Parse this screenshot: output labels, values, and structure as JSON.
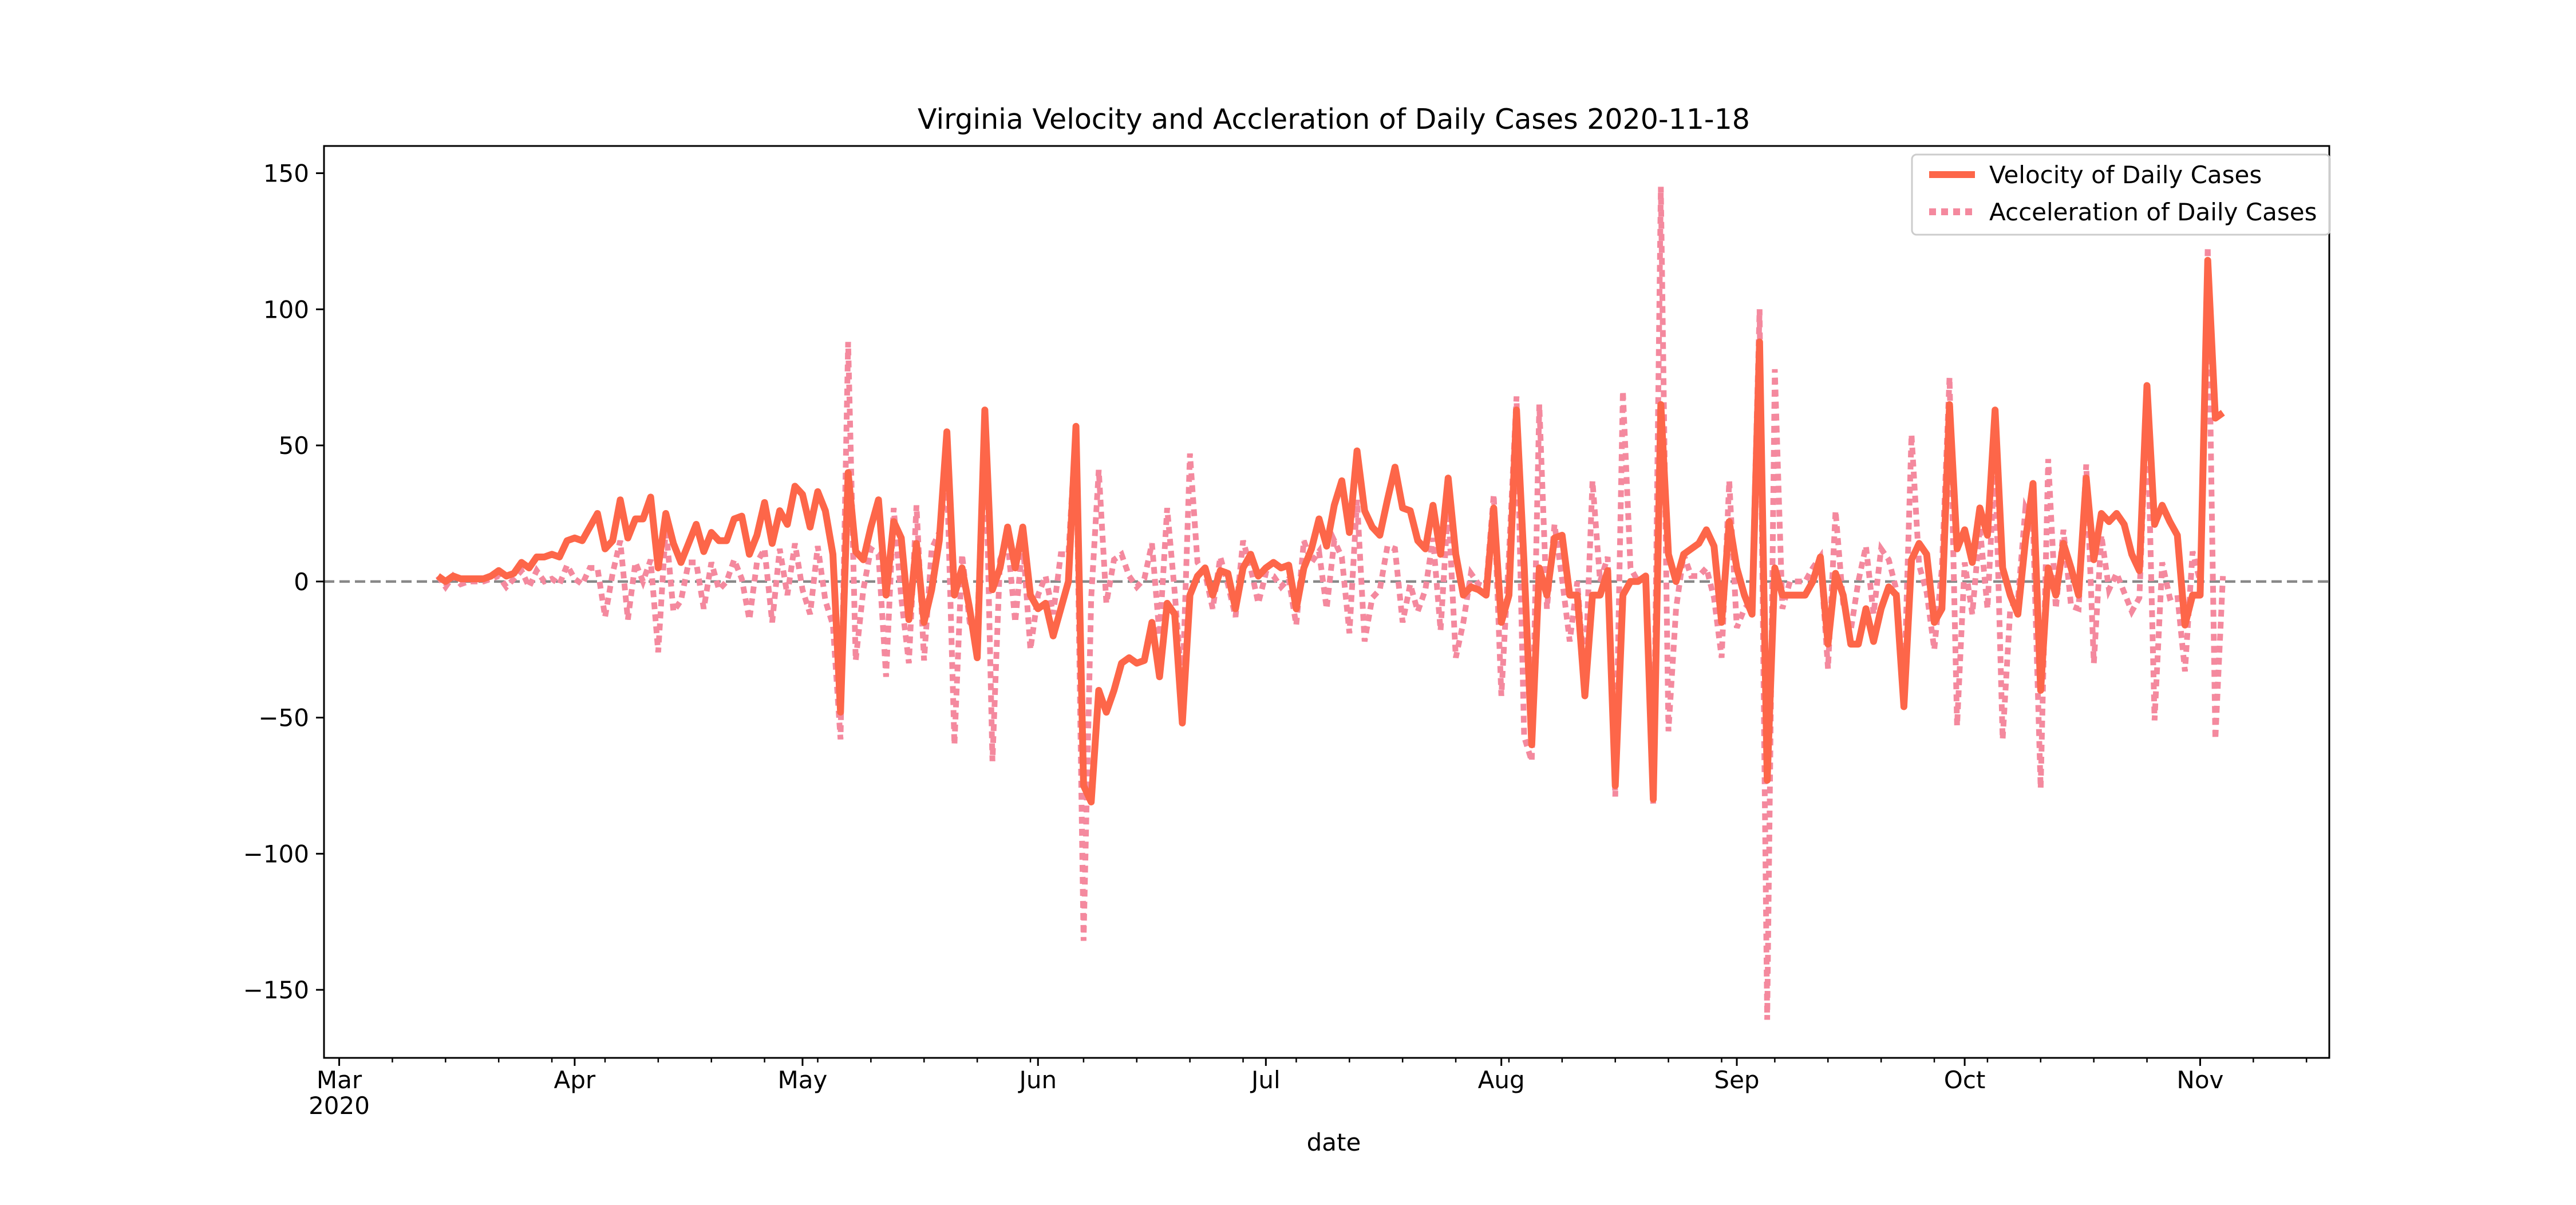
{
  "chart_data": {
    "type": "line",
    "title": "Virginia Velocity and Accleration of Daily Cases 2020-11-18",
    "xlabel": "date",
    "ylabel": "",
    "x_start": "2020-03-14",
    "x_end": "2020-11-18",
    "xlim": [
      "2020-02-28",
      "2020-11-18"
    ],
    "ylim": [
      -175,
      160
    ],
    "y_ticks": [
      -150,
      -100,
      -50,
      0,
      50,
      100,
      150
    ],
    "y_tick_labels": [
      "−150",
      "−100",
      "−50",
      "0",
      "50",
      "100",
      "150"
    ],
    "x_ticks": [
      {
        "date": "2020-03-01",
        "label": "Mar",
        "sublabel": "2020"
      },
      {
        "date": "2020-04-01",
        "label": "Apr"
      },
      {
        "date": "2020-05-01",
        "label": "May"
      },
      {
        "date": "2020-06-01",
        "label": "Jun"
      },
      {
        "date": "2020-07-01",
        "label": "Jul"
      },
      {
        "date": "2020-08-01",
        "label": "Aug"
      },
      {
        "date": "2020-09-01",
        "label": "Sep"
      },
      {
        "date": "2020-10-01",
        "label": "Oct"
      },
      {
        "date": "2020-11-01",
        "label": "Nov"
      }
    ],
    "legend_position": "top-right",
    "grid": false,
    "zero_line": {
      "y": 0,
      "style": "dashed",
      "color": "#888888"
    },
    "series": [
      {
        "name": "Velocity of Daily Cases",
        "color": "#fd6649",
        "style": "solid",
        "values": [
          2,
          0,
          2,
          1,
          1,
          1,
          1,
          2,
          4,
          2,
          3,
          7,
          5,
          9,
          9,
          10,
          9,
          15,
          16,
          15,
          20,
          25,
          12,
          15,
          30,
          16,
          23,
          23,
          31,
          5,
          25,
          14,
          7,
          14,
          21,
          11,
          18,
          15,
          15,
          23,
          24,
          10,
          17,
          29,
          14,
          26,
          21,
          35,
          32,
          20,
          33,
          26,
          10,
          -48,
          40,
          11,
          8,
          20,
          30,
          -5,
          22,
          16,
          -14,
          14,
          -15,
          -3,
          15,
          55,
          -5,
          5,
          -10,
          -28,
          63,
          -3,
          5,
          20,
          5,
          20,
          -5,
          -10,
          -8,
          -20,
          -10,
          0,
          57,
          -75,
          -81,
          -40,
          -48,
          -40,
          -30,
          -28,
          -30,
          -29,
          -15,
          -35,
          -8,
          -12,
          -52,
          -5,
          2,
          5,
          -5,
          4,
          3,
          -10,
          5,
          10,
          2,
          5,
          7,
          5,
          6,
          -10,
          5,
          12,
          23,
          13,
          28,
          37,
          18,
          48,
          26,
          20,
          17,
          30,
          42,
          27,
          26,
          15,
          12,
          28,
          10,
          38,
          10,
          -5,
          -2,
          -3,
          -5,
          27,
          -15,
          -5,
          63,
          6,
          -60,
          5,
          -5,
          16,
          17,
          -5,
          -5,
          -42,
          -5,
          -5,
          4,
          -75,
          -5,
          0,
          0,
          2,
          -80,
          65,
          10,
          0,
          10,
          12,
          14,
          19,
          13,
          -15,
          22,
          5,
          -5,
          -12,
          88,
          -73,
          5,
          -5,
          -5,
          -5,
          -5,
          0,
          9,
          -23,
          3,
          -5,
          -23,
          -23,
          -10,
          -22,
          -10,
          -2,
          -5,
          -46,
          8,
          14,
          10,
          -15,
          -10,
          65,
          12,
          19,
          7,
          27,
          17,
          63,
          5,
          -5,
          -12,
          15,
          36,
          -40,
          5,
          -5,
          14,
          5,
          -5,
          38,
          8,
          25,
          22,
          25,
          21,
          10,
          4,
          72,
          21,
          28,
          22,
          17,
          -16,
          -5,
          -5,
          118,
          60,
          62
        ]
      },
      {
        "name": "Acceleration of Daily Cases",
        "color": "#f4899e",
        "style": "dotted",
        "values": [
          2,
          -2,
          2,
          -1,
          0,
          0,
          0,
          1,
          2,
          -2,
          1,
          4,
          -2,
          4,
          0,
          1,
          -1,
          6,
          1,
          -1,
          5,
          5,
          -13,
          3,
          15,
          -14,
          7,
          0,
          8,
          -26,
          20,
          -11,
          -7,
          7,
          7,
          -10,
          7,
          -3,
          0,
          8,
          1,
          -14,
          7,
          12,
          -15,
          12,
          -5,
          14,
          -3,
          -12,
          13,
          -7,
          -16,
          -58,
          88,
          -29,
          -3,
          12,
          10,
          -35,
          27,
          -6,
          -30,
          28,
          -29,
          12,
          18,
          40,
          -60,
          10,
          -15,
          -18,
          62,
          -66,
          8,
          15,
          -15,
          15,
          -25,
          -5,
          2,
          -12,
          10,
          10,
          57,
          -132,
          -6,
          41,
          -8,
          8,
          10,
          2,
          -2,
          1,
          14,
          -20,
          27,
          -4,
          -40,
          47,
          7,
          3,
          -10,
          9,
          -1,
          -13,
          15,
          5,
          -8,
          3,
          2,
          -2,
          1,
          -16,
          15,
          7,
          11,
          -10,
          15,
          9,
          -19,
          30,
          -22,
          -6,
          -3,
          13,
          12,
          -15,
          -1,
          -11,
          -3,
          16,
          -18,
          28,
          -28,
          -15,
          3,
          -1,
          -2,
          32,
          -42,
          10,
          68,
          -57,
          -66,
          65,
          -10,
          21,
          1,
          -22,
          0,
          -37,
          37,
          0,
          9,
          -79,
          70,
          5,
          0,
          2,
          -82,
          145,
          -55,
          -10,
          10,
          2,
          2,
          5,
          -6,
          -28,
          37,
          -17,
          -10,
          -7,
          100,
          -161,
          78,
          -10,
          0,
          0,
          0,
          5,
          9,
          -32,
          26,
          -8,
          -18,
          0,
          13,
          -12,
          12,
          8,
          -3,
          -41,
          54,
          6,
          -4,
          -25,
          5,
          75,
          -53,
          7,
          -12,
          20,
          -10,
          46,
          -58,
          -10,
          -7,
          27,
          21,
          -76,
          45,
          -10,
          19,
          -9,
          -10,
          43,
          -30,
          17,
          -3,
          3,
          -4,
          -11,
          -6,
          68,
          -51,
          7,
          -6,
          -5,
          -33,
          11,
          0,
          123,
          -58,
          2
        ]
      }
    ]
  }
}
